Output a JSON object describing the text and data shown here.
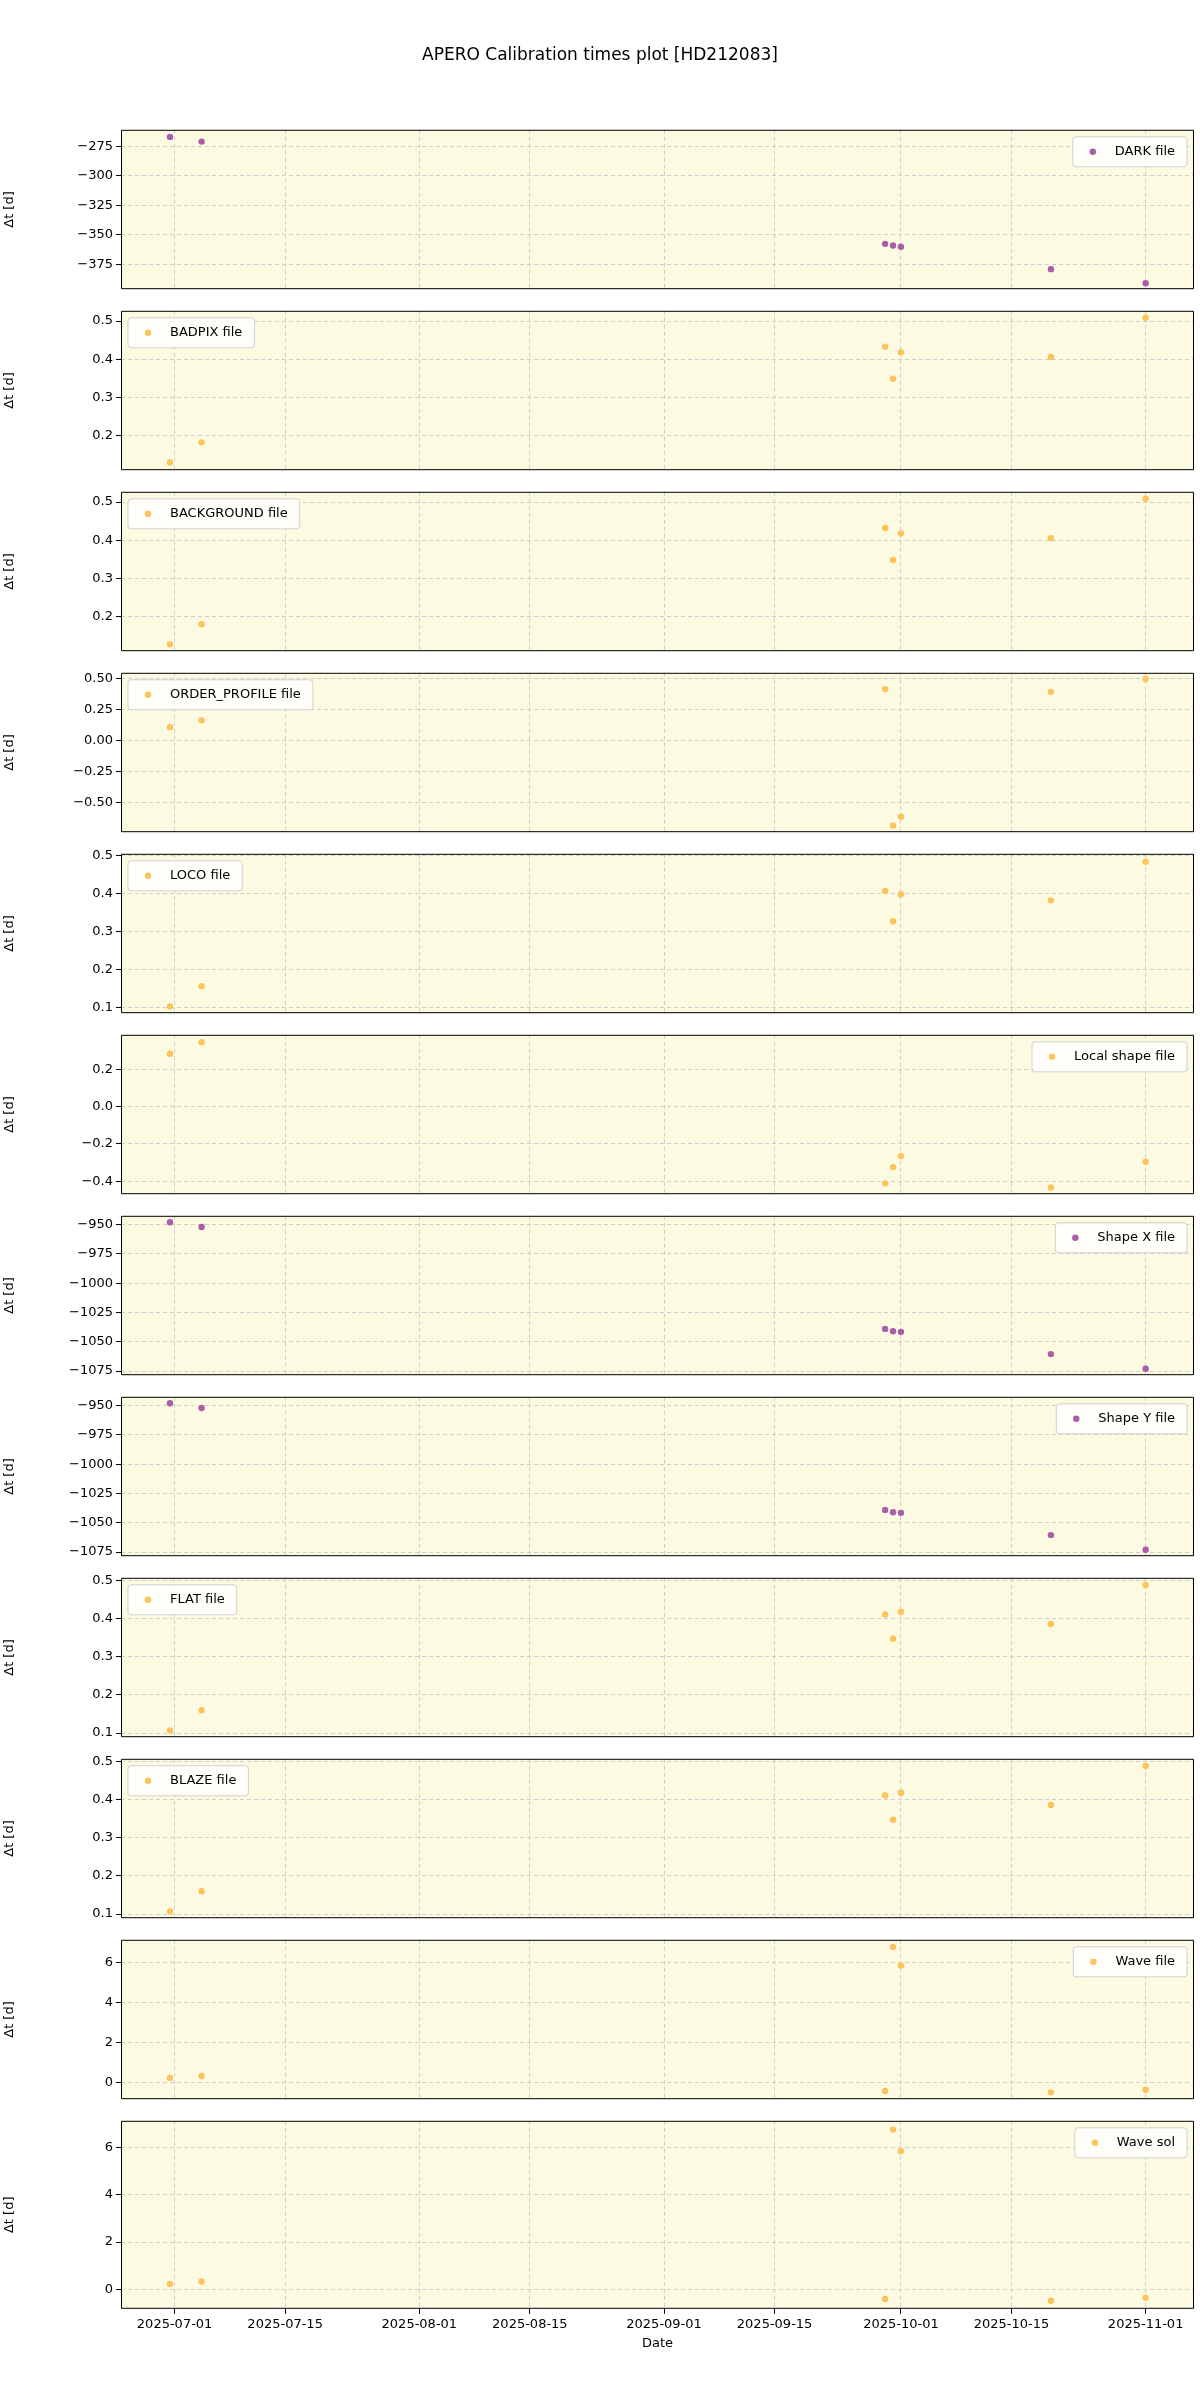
{
  "chart_data": [
    {
      "type": "scatter",
      "title": "APERO Calibration times plot [HD212083]",
      "ylabel": "Δt [d]",
      "x": [
        "2025-06-30T10:00",
        "2025-07-04T10:00",
        "2025-09-29",
        "2025-09-30",
        "2025-10-01",
        "2025-10-20",
        "2025-11-01"
      ],
      "series": [
        {
          "name": "DARK file",
          "color": "#a95ea9",
          "values": [
            -267,
            -271,
            -357.6,
            -359,
            -360,
            -379,
            -391
          ]
        }
      ],
      "ylim": [
        -396,
        -261
      ],
      "yticks": [
        {
          "value": -375,
          "label": "−375"
        },
        {
          "value": -350,
          "label": "−350"
        },
        {
          "value": -325,
          "label": "−325"
        },
        {
          "value": -300,
          "label": "−300"
        },
        {
          "value": -275,
          "label": "−275"
        }
      ],
      "xlim": [
        "2025-06-24T05:00",
        "2025-11-07T03:00"
      ],
      "xticks": [
        "2025-07-01",
        "2025-07-15",
        "2025-08-01",
        "2025-08-15",
        "2025-09-01",
        "2025-09-15",
        "2025-10-01",
        "2025-10-15",
        "2025-11-01"
      ],
      "grid": true,
      "legend": "top right",
      "marker": "circle",
      "tick_labels": "y"
    },
    {
      "type": "scatter",
      "ylabel": "Δt [d]",
      "x": [
        "2025-06-30T10:00",
        "2025-07-04T10:00",
        "2025-09-29",
        "2025-09-30",
        "2025-10-01",
        "2025-10-20",
        "2025-11-01"
      ],
      "series": [
        {
          "name": "BADPIX file",
          "color": "#fcc45a",
          "values": [
            0.129,
            0.182,
            0.433,
            0.349,
            0.418,
            0.406,
            0.509
          ]
        }
      ],
      "ylim": [
        0.109,
        0.527
      ],
      "yticks": [
        0.2,
        0.3,
        0.4,
        0.5
      ],
      "xlim": [
        "2025-06-24T05:00",
        "2025-11-07T03:00"
      ],
      "xticks": [
        "2025-07-01",
        "2025-07-15",
        "2025-08-01",
        "2025-08-15",
        "2025-09-01",
        "2025-09-15",
        "2025-10-01",
        "2025-10-15",
        "2025-11-01"
      ],
      "grid": true,
      "legend": "top left",
      "marker": "circle",
      "tick_labels": "y"
    },
    {
      "type": "scatter",
      "ylabel": "Δt [d]",
      "x": [
        "2025-06-30T10:00",
        "2025-07-04T10:00",
        "2025-09-29",
        "2025-09-30",
        "2025-10-01",
        "2025-10-20",
        "2025-11-01"
      ],
      "series": [
        {
          "name": "BACKGROUND file",
          "color": "#fcc45a",
          "values": [
            0.127,
            0.18,
            0.432,
            0.348,
            0.418,
            0.405,
            0.509
          ]
        }
      ],
      "ylim": [
        0.109,
        0.527
      ],
      "yticks": [
        0.2,
        0.3,
        0.4,
        0.5
      ],
      "xlim": [
        "2025-06-24T05:00",
        "2025-11-07T03:00"
      ],
      "xticks": [
        "2025-07-01",
        "2025-07-15",
        "2025-08-01",
        "2025-08-15",
        "2025-09-01",
        "2025-09-15",
        "2025-10-01",
        "2025-10-15",
        "2025-11-01"
      ],
      "grid": true,
      "legend": "top left",
      "marker": "circle",
      "tick_labels": "y"
    },
    {
      "type": "scatter",
      "ylabel": "Δt [d]",
      "x": [
        "2025-06-30T10:00",
        "2025-07-04T10:00",
        "2025-09-29",
        "2025-09-30",
        "2025-10-01",
        "2025-10-20",
        "2025-11-01"
      ],
      "series": [
        {
          "name": "ORDER_PROFILE file",
          "color": "#fcc45a",
          "values": [
            0.11,
            0.165,
            0.418,
            -0.687,
            -0.615,
            0.396,
            0.5
          ]
        }
      ],
      "ylim": [
        -0.74,
        0.55
      ],
      "yticks": [
        {
          "value": -0.5,
          "label": "−0.50"
        },
        {
          "value": -0.25,
          "label": "−0.25"
        },
        {
          "value": 0,
          "label": "0.00"
        },
        {
          "value": 0.25,
          "label": "0.25"
        },
        {
          "value": 0.5,
          "label": "0.50"
        }
      ],
      "xlim": [
        "2025-06-24T05:00",
        "2025-11-07T03:00"
      ],
      "xticks": [
        "2025-07-01",
        "2025-07-15",
        "2025-08-01",
        "2025-08-15",
        "2025-09-01",
        "2025-09-15",
        "2025-10-01",
        "2025-10-15",
        "2025-11-01"
      ],
      "grid": true,
      "legend": "top left",
      "marker": "circle",
      "tick_labels": "y"
    },
    {
      "type": "scatter",
      "ylabel": "Δt [d]",
      "x": [
        "2025-06-30T10:00",
        "2025-07-04T10:00",
        "2025-09-29",
        "2025-09-30",
        "2025-10-01",
        "2025-10-20",
        "2025-11-01"
      ],
      "series": [
        {
          "name": "LOCO file",
          "color": "#fcc45a",
          "values": [
            0.102,
            0.155,
            0.407,
            0.327,
            0.398,
            0.382,
            0.484
          ]
        }
      ],
      "ylim": [
        0.084,
        0.505
      ],
      "yticks": [
        0.1,
        0.2,
        0.3,
        0.4,
        0.5
      ],
      "xlim": [
        "2025-06-24T05:00",
        "2025-11-07T03:00"
      ],
      "xticks": [
        "2025-07-01",
        "2025-07-15",
        "2025-08-01",
        "2025-08-15",
        "2025-09-01",
        "2025-09-15",
        "2025-10-01",
        "2025-10-15",
        "2025-11-01"
      ],
      "grid": true,
      "legend": "top left",
      "marker": "circle",
      "tick_labels": "y"
    },
    {
      "type": "scatter",
      "ylabel": "Δt [d]",
      "x": [
        "2025-06-30T10:00",
        "2025-07-04T10:00",
        "2025-09-29",
        "2025-09-30",
        "2025-10-01",
        "2025-10-20",
        "2025-11-01"
      ],
      "series": [
        {
          "name": "Local shape file",
          "color": "#fcc45a",
          "values": [
            0.284,
            0.345,
            -0.411,
            -0.324,
            -0.265,
            -0.433,
            -0.295
          ]
        }
      ],
      "ylim": [
        -0.469,
        0.385
      ],
      "yticks": [
        {
          "value": -0.4,
          "label": "−0.4"
        },
        {
          "value": -0.2,
          "label": "−0.2"
        },
        {
          "value": 0,
          "label": "0.0"
        },
        {
          "value": 0.2,
          "label": "0.2"
        }
      ],
      "xlim": [
        "2025-06-24T05:00",
        "2025-11-07T03:00"
      ],
      "xticks": [
        "2025-07-01",
        "2025-07-15",
        "2025-08-01",
        "2025-08-15",
        "2025-09-01",
        "2025-09-15",
        "2025-10-01",
        "2025-10-15",
        "2025-11-01"
      ],
      "grid": true,
      "legend": "top right",
      "marker": "circle",
      "tick_labels": "y"
    },
    {
      "type": "scatter",
      "ylabel": "Δt [d]",
      "x": [
        "2025-06-30T10:00",
        "2025-07-04T10:00",
        "2025-09-29",
        "2025-09-30",
        "2025-10-01",
        "2025-10-20",
        "2025-11-01"
      ],
      "series": [
        {
          "name": "Shape X file",
          "color": "#a95ea9",
          "values": [
            -948,
            -952,
            -1039,
            -1041,
            -1041.5,
            -1060.5,
            -1073
          ]
        }
      ],
      "ylim": [
        -1078.5,
        -942.5
      ],
      "yticks": [
        {
          "value": -1075,
          "label": "−1075"
        },
        {
          "value": -1050,
          "label": "−1050"
        },
        {
          "value": -1025,
          "label": "−1025"
        },
        {
          "value": -1000,
          "label": "−1000"
        },
        {
          "value": -975,
          "label": "−975"
        },
        {
          "value": -950,
          "label": "−950"
        }
      ],
      "xlim": [
        "2025-06-24T05:00",
        "2025-11-07T03:00"
      ],
      "xticks": [
        "2025-07-01",
        "2025-07-15",
        "2025-08-01",
        "2025-08-15",
        "2025-09-01",
        "2025-09-15",
        "2025-10-01",
        "2025-10-15",
        "2025-11-01"
      ],
      "grid": true,
      "legend": "top right",
      "marker": "circle",
      "tick_labels": "y"
    },
    {
      "type": "scatter",
      "ylabel": "Δt [d]",
      "x": [
        "2025-06-30T10:00",
        "2025-07-04T10:00",
        "2025-09-29",
        "2025-09-30",
        "2025-10-01",
        "2025-10-20",
        "2025-11-01"
      ],
      "series": [
        {
          "name": "Shape Y file",
          "color": "#a95ea9",
          "values": [
            -948,
            -952,
            -1039,
            -1041,
            -1041.5,
            -1060.5,
            -1073
          ]
        }
      ],
      "ylim": [
        -1078.5,
        -942.5
      ],
      "yticks": [
        {
          "value": -1075,
          "label": "−1075"
        },
        {
          "value": -1050,
          "label": "−1050"
        },
        {
          "value": -1025,
          "label": "−1025"
        },
        {
          "value": -1000,
          "label": "−1000"
        },
        {
          "value": -975,
          "label": "−975"
        },
        {
          "value": -950,
          "label": "−950"
        }
      ],
      "xlim": [
        "2025-06-24T05:00",
        "2025-11-07T03:00"
      ],
      "xticks": [
        "2025-07-01",
        "2025-07-15",
        "2025-08-01",
        "2025-08-15",
        "2025-09-01",
        "2025-09-15",
        "2025-10-01",
        "2025-10-15",
        "2025-11-01"
      ],
      "grid": true,
      "legend": "top right",
      "marker": "circle",
      "tick_labels": "y"
    },
    {
      "type": "scatter",
      "ylabel": "Δt [d]",
      "x": [
        "2025-06-30T10:00",
        "2025-07-04T10:00",
        "2025-09-29",
        "2025-09-30",
        "2025-10-01",
        "2025-10-20",
        "2025-11-01"
      ],
      "series": [
        {
          "name": "FLAT file",
          "color": "#fcc45a",
          "values": [
            0.107,
            0.16,
            0.411,
            0.347,
            0.418,
            0.386,
            0.488
          ]
        }
      ],
      "ylim": [
        0.089,
        0.507
      ],
      "yticks": [
        0.1,
        0.2,
        0.3,
        0.4,
        0.5
      ],
      "xlim": [
        "2025-06-24T05:00",
        "2025-11-07T03:00"
      ],
      "xticks": [
        "2025-07-01",
        "2025-07-15",
        "2025-08-01",
        "2025-08-15",
        "2025-09-01",
        "2025-09-15",
        "2025-10-01",
        "2025-10-15",
        "2025-11-01"
      ],
      "grid": true,
      "legend": "top left",
      "marker": "circle",
      "tick_labels": "y"
    },
    {
      "type": "scatter",
      "ylabel": "Δt [d]",
      "x": [
        "2025-06-30T10:00",
        "2025-07-04T10:00",
        "2025-09-29",
        "2025-09-30",
        "2025-10-01",
        "2025-10-20",
        "2025-11-01"
      ],
      "series": [
        {
          "name": "BLAZE file",
          "color": "#fcc45a",
          "values": [
            0.107,
            0.16,
            0.411,
            0.347,
            0.418,
            0.386,
            0.488
          ]
        }
      ],
      "ylim": [
        0.089,
        0.507
      ],
      "yticks": [
        0.1,
        0.2,
        0.3,
        0.4,
        0.5
      ],
      "xlim": [
        "2025-06-24T05:00",
        "2025-11-07T03:00"
      ],
      "xticks": [
        "2025-07-01",
        "2025-07-15",
        "2025-08-01",
        "2025-08-15",
        "2025-09-01",
        "2025-09-15",
        "2025-10-01",
        "2025-10-15",
        "2025-11-01"
      ],
      "grid": true,
      "legend": "top left",
      "marker": "circle",
      "tick_labels": "y"
    },
    {
      "type": "scatter",
      "ylabel": "Δt [d]",
      "x": [
        "2025-06-30T10:00",
        "2025-07-04T10:00",
        "2025-09-29",
        "2025-09-30",
        "2025-10-01",
        "2025-10-20",
        "2025-11-01"
      ],
      "series": [
        {
          "name": "Wave file",
          "color": "#fcc45a",
          "values": [
            0.24,
            0.34,
            -0.4,
            6.75,
            5.83,
            -0.47,
            -0.34
          ]
        }
      ],
      "ylim": [
        -0.81,
        7.11
      ],
      "yticks": [
        0,
        2,
        4,
        6
      ],
      "xlim": [
        "2025-06-24T05:00",
        "2025-11-07T03:00"
      ],
      "xticks": [
        "2025-07-01",
        "2025-07-15",
        "2025-08-01",
        "2025-08-15",
        "2025-09-01",
        "2025-09-15",
        "2025-10-01",
        "2025-10-15",
        "2025-11-01"
      ],
      "grid": true,
      "legend": "top right",
      "marker": "circle",
      "tick_labels": "y"
    },
    {
      "type": "scatter",
      "ylabel": "Δt [d]",
      "xlabel": "Date",
      "x": [
        "2025-06-30T10:00",
        "2025-07-04T10:00",
        "2025-09-29",
        "2025-09-30",
        "2025-10-01",
        "2025-10-20",
        "2025-11-01"
      ],
      "series": [
        {
          "name": "Wave sol",
          "color": "#fcc45a",
          "values": [
            0.24,
            0.34,
            -0.4,
            6.74,
            5.83,
            -0.47,
            -0.34
          ]
        }
      ],
      "ylim": [
        -0.81,
        7.11
      ],
      "yticks": [
        0,
        2,
        4,
        6
      ],
      "xlim": [
        "2025-06-24T05:00",
        "2025-11-07T03:00"
      ],
      "xticks": [
        "2025-07-01",
        "2025-07-15",
        "2025-08-01",
        "2025-08-15",
        "2025-09-01",
        "2025-09-15",
        "2025-10-01",
        "2025-10-15",
        "2025-11-01"
      ],
      "grid": true,
      "legend": "top right",
      "marker": "circle"
    }
  ]
}
